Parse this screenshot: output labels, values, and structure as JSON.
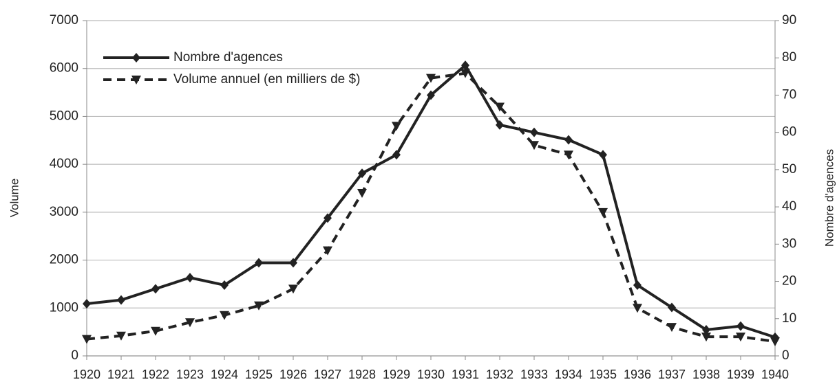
{
  "chart_data": {
    "type": "line",
    "categories": [
      "1920",
      "1921",
      "1922",
      "1923",
      "1924",
      "1925",
      "1926",
      "1927",
      "1928",
      "1929",
      "1930",
      "1931",
      "1932",
      "1933",
      "1934",
      "1935",
      "1936",
      "1937",
      "1938",
      "1939",
      "1940"
    ],
    "series": [
      {
        "name": "Nombre d'agences",
        "color": "#222222",
        "axis": "y2",
        "dashed": false,
        "marker": "diamond",
        "values": [
          14,
          15,
          18,
          21,
          19,
          25,
          25,
          37,
          49,
          54,
          70,
          78,
          62,
          60,
          58,
          54,
          19,
          13,
          7,
          8,
          5
        ]
      },
      {
        "name": "Volume annuel (en milliers de $)",
        "color": "#222222",
        "dashed": true,
        "marker": "triangle",
        "values": [
          350,
          420,
          520,
          700,
          850,
          1050,
          1400,
          2200,
          3400,
          4800,
          5800,
          5900,
          5200,
          4400,
          4200,
          3000,
          1000,
          600,
          400,
          400,
          300
        ]
      }
    ],
    "ylabel": "Volume",
    "y2label": "Nombre d'agences",
    "ylim": [
      0,
      7000
    ],
    "yticks": [
      0,
      1000,
      2000,
      3000,
      4000,
      5000,
      6000,
      7000
    ],
    "y2lim": [
      0,
      90
    ],
    "y2ticks": [
      0,
      10,
      20,
      30,
      40,
      50,
      60,
      70,
      80,
      90
    ],
    "grid": true,
    "legend": "upper left"
  }
}
